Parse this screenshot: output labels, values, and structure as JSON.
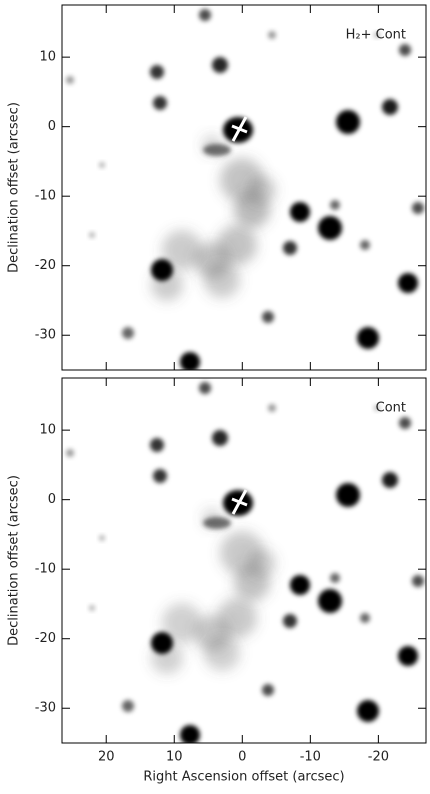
{
  "chart_data": [
    {
      "type": "image",
      "label": "H₂+ Cont",
      "ylabel": "Declination offset (arcsec)",
      "xlim": [
        26.5,
        -27
      ],
      "ylim": [
        -35,
        17.5
      ],
      "yticks": [
        10,
        0,
        -10,
        -20,
        -30
      ]
    },
    {
      "type": "image",
      "label": "Cont",
      "ylabel": "Declination offset (arcsec)",
      "xlabel": "Right Ascension offset (arcsec)",
      "xlim": [
        26.5,
        -27
      ],
      "ylim": [
        -35,
        17.5
      ],
      "xticks": [
        20,
        10,
        0,
        -10,
        -20
      ],
      "yticks": [
        10,
        0,
        -10,
        -20,
        -30
      ]
    }
  ]
}
